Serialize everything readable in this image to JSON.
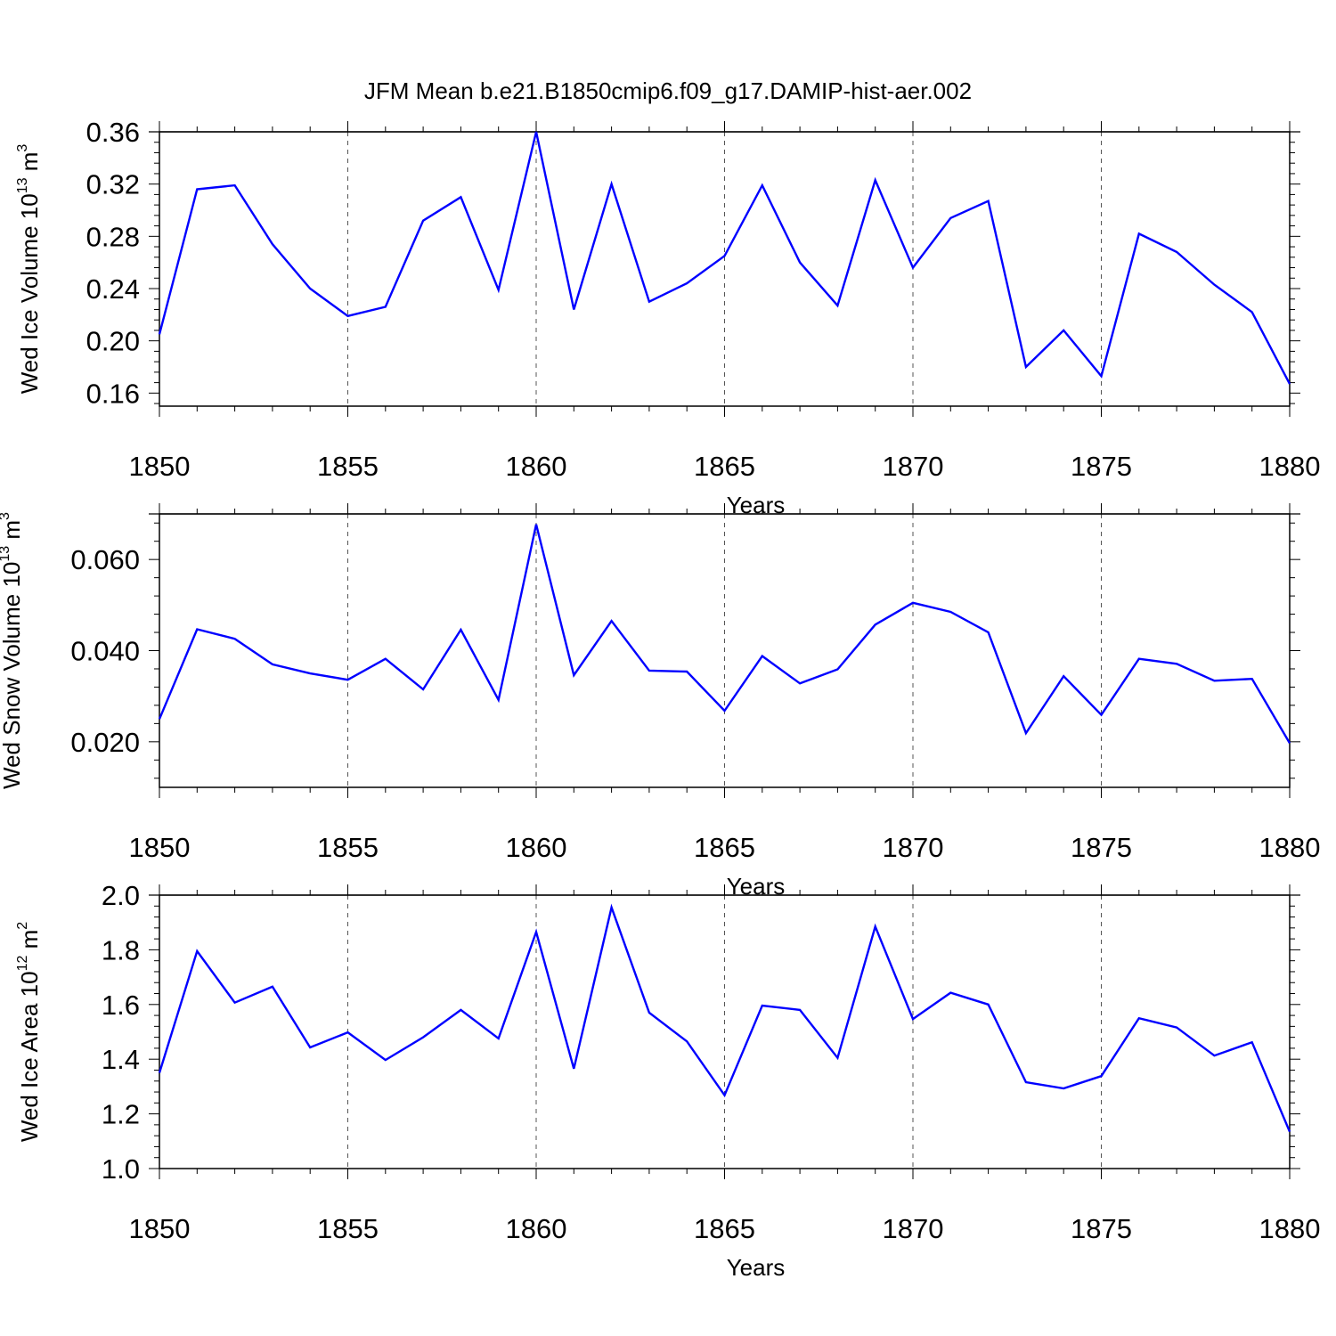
{
  "title": "JFM Mean b.e21.B1850cmip6.f09_g17.DAMIP-hist-aer.002",
  "chart_data": [
    {
      "type": "line",
      "title": "JFM Mean b.e21.B1850cmip6.f09_g17.DAMIP-hist-aer.002",
      "ylabel_base": "Wed Ice Volume 10",
      "ylabel_exp": "13",
      "ylabel_unit": " m",
      "ylabel_unit_exp": "3",
      "xlabel": "Years",
      "xlim": [
        1850,
        1880
      ],
      "ylim": [
        0.15,
        0.36
      ],
      "yticks": [
        0.16,
        0.2,
        0.24,
        0.28,
        0.32,
        0.36
      ],
      "ytick_labels": [
        "0.16",
        "0.20",
        "0.24",
        "0.28",
        "0.32",
        "0.36"
      ],
      "xticks": [
        1850,
        1855,
        1860,
        1865,
        1870,
        1875,
        1880
      ],
      "xtick_labels": [
        "1850",
        "1855",
        "1860",
        "1865",
        "1870",
        "1875",
        "1880"
      ],
      "ref_line": 0.36,
      "color": "#0000ff",
      "x": [
        1850,
        1851,
        1852,
        1853,
        1854,
        1855,
        1856,
        1857,
        1858,
        1859,
        1860,
        1861,
        1862,
        1863,
        1864,
        1865,
        1866,
        1867,
        1868,
        1869,
        1870,
        1871,
        1872,
        1873,
        1874,
        1875,
        1876,
        1877,
        1878,
        1879,
        1880
      ],
      "values": [
        0.205,
        0.316,
        0.319,
        0.274,
        0.24,
        0.219,
        0.226,
        0.292,
        0.31,
        0.239,
        0.36,
        0.224,
        0.32,
        0.23,
        0.244,
        0.265,
        0.319,
        0.26,
        0.227,
        0.323,
        0.256,
        0.294,
        0.307,
        0.18,
        0.208,
        0.173,
        0.282,
        0.268,
        0.243,
        0.222,
        0.167
      ]
    },
    {
      "type": "line",
      "title": "",
      "ylabel_base": "Wed Snow Volume 10",
      "ylabel_exp": "13",
      "ylabel_unit": " m",
      "ylabel_unit_exp": "3",
      "xlabel": "Years",
      "xlim": [
        1850,
        1880
      ],
      "ylim": [
        0.01,
        0.07
      ],
      "yticks": [
        0.02,
        0.04,
        0.06
      ],
      "ytick_labels": [
        "0.020",
        "0.040",
        "0.060"
      ],
      "xticks": [
        1850,
        1855,
        1860,
        1865,
        1870,
        1875,
        1880
      ],
      "xtick_labels": [
        "1850",
        "1855",
        "1860",
        "1865",
        "1870",
        "1875",
        "1880"
      ],
      "ref_line": 0.07,
      "color": "#0000ff",
      "x": [
        1850,
        1851,
        1852,
        1853,
        1854,
        1855,
        1856,
        1857,
        1858,
        1859,
        1860,
        1861,
        1862,
        1863,
        1864,
        1865,
        1866,
        1867,
        1868,
        1869,
        1870,
        1871,
        1872,
        1873,
        1874,
        1875,
        1876,
        1877,
        1878,
        1879,
        1880
      ],
      "values": [
        0.025,
        0.0447,
        0.0426,
        0.037,
        0.035,
        0.0336,
        0.0382,
        0.0315,
        0.0446,
        0.0292,
        0.0677,
        0.0346,
        0.0465,
        0.0356,
        0.0354,
        0.0268,
        0.0388,
        0.0328,
        0.0359,
        0.0457,
        0.0505,
        0.0485,
        0.044,
        0.0219,
        0.0344,
        0.0259,
        0.0382,
        0.0371,
        0.0334,
        0.0338,
        0.0197
      ]
    },
    {
      "type": "line",
      "title": "",
      "ylabel_base": "Wed Ice Area 10",
      "ylabel_exp": "12",
      "ylabel_unit": " m",
      "ylabel_unit_exp": "2",
      "xlabel": "Years",
      "xlim": [
        1850,
        1880
      ],
      "ylim": [
        1.0,
        2.0
      ],
      "yticks": [
        1.0,
        1.2,
        1.4,
        1.6,
        1.8,
        2.0
      ],
      "ytick_labels": [
        "1.0",
        "1.2",
        "1.4",
        "1.6",
        "1.8",
        "2.0"
      ],
      "xticks": [
        1850,
        1855,
        1860,
        1865,
        1870,
        1875,
        1880
      ],
      "xtick_labels": [
        "1850",
        "1855",
        "1860",
        "1865",
        "1870",
        "1875",
        "1880"
      ],
      "ref_line": 2.0,
      "color": "#0000ff",
      "x": [
        1850,
        1851,
        1852,
        1853,
        1854,
        1855,
        1856,
        1857,
        1858,
        1859,
        1860,
        1861,
        1862,
        1863,
        1864,
        1865,
        1866,
        1867,
        1868,
        1869,
        1870,
        1871,
        1872,
        1873,
        1874,
        1875,
        1876,
        1877,
        1878,
        1879,
        1880
      ],
      "values": [
        1.35,
        1.795,
        1.607,
        1.665,
        1.443,
        1.498,
        1.397,
        1.48,
        1.58,
        1.476,
        1.865,
        1.365,
        1.955,
        1.57,
        1.465,
        1.268,
        1.596,
        1.58,
        1.405,
        1.885,
        1.547,
        1.643,
        1.6,
        1.316,
        1.293,
        1.338,
        1.55,
        1.516,
        1.413,
        1.462,
        1.135
      ]
    }
  ]
}
